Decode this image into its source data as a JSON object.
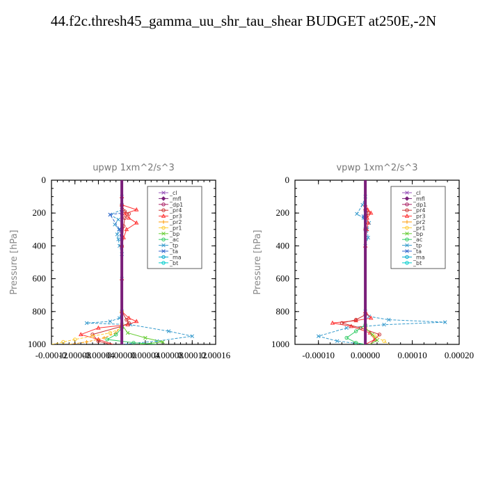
{
  "title": "44.f2c.thresh45_gamma_uu_shr_tau_shear  BUDGET at250E,-2N",
  "legend_entries": [
    {
      "name": "_cl",
      "color": "#9955bb",
      "marker": "star"
    },
    {
      "name": "_mfl",
      "color": "#7a1f7a",
      "marker": "diamond"
    },
    {
      "name": "_dp1",
      "color": "#aa2266",
      "marker": "circle"
    },
    {
      "name": "_pr4",
      "color": "#cc3333",
      "marker": "circle"
    },
    {
      "name": "_pr3",
      "color": "#ff3333",
      "marker": "triangle"
    },
    {
      "name": "_pr2",
      "color": "#ff9900",
      "marker": "plus"
    },
    {
      "name": "_pr1",
      "color": "#ffcc33",
      "marker": "circle"
    },
    {
      "name": "_bp",
      "color": "#66cc33",
      "marker": "x"
    },
    {
      "name": "_ac",
      "color": "#33cc66",
      "marker": "circle"
    },
    {
      "name": "_tp",
      "color": "#3399cc",
      "marker": "x"
    },
    {
      "name": "_ta",
      "color": "#3366cc",
      "marker": "arrow"
    },
    {
      "name": "_ma",
      "color": "#00aacc",
      "marker": "dash"
    },
    {
      "name": "_bt",
      "color": "#00cccc",
      "marker": "circle"
    }
  ],
  "chart_data": [
    {
      "type": "line",
      "title": "upwp   1xm^2/s^3",
      "ylabel": "Pressure [hPa]",
      "xlim": [
        -0.00012,
        0.00016
      ],
      "ylim": [
        1000,
        0
      ],
      "xticks": [
        "-0.00012",
        "-0.00008",
        "-0.00004",
        "0.00000",
        "0.00004",
        "0.00008",
        "0.00012",
        "0.00016"
      ],
      "yticks": [
        "0",
        "200",
        "400",
        "600",
        "800",
        "1000"
      ],
      "legend_position": "top-right",
      "series": [
        {
          "name": "_tp",
          "x": [
            0,
            0,
            0,
            0,
            -2e-05,
            -6e-06,
            -1.2e-05,
            -5e-06,
            -8e-06,
            -6e-06,
            -4e-06,
            0,
            0,
            0,
            -4e-06,
            -2e-05,
            -6e-05,
            1.5e-05,
            8e-05,
            0.00012,
            6e-05,
            0
          ],
          "y": [
            0,
            100,
            150,
            180,
            210,
            240,
            270,
            300,
            330,
            360,
            400,
            450,
            600,
            800,
            840,
            860,
            870,
            880,
            920,
            950,
            980,
            1000
          ]
        },
        {
          "name": "_pr3",
          "x": [
            0,
            0,
            0,
            2.5e-05,
            5e-06,
            1.2e-05,
            2.5e-05,
            8e-06,
            3e-06,
            0,
            0,
            0,
            1.2e-05,
            2.5e-05,
            1e-05,
            -4e-05,
            -7e-05,
            -4e-05,
            -1.5e-05
          ],
          "y": [
            0,
            100,
            150,
            180,
            205,
            230,
            260,
            300,
            350,
            400,
            600,
            800,
            840,
            860,
            880,
            900,
            940,
            970,
            1000
          ]
        },
        {
          "name": "_pr4",
          "x": [
            0,
            0,
            5e-06,
            1.2e-05,
            5e-06,
            3e-06,
            0,
            0,
            8e-06,
            1.2e-05,
            0,
            -5e-05,
            -4e-05,
            -2e-05
          ],
          "y": [
            0,
            150,
            190,
            205,
            230,
            280,
            400,
            800,
            850,
            870,
            890,
            940,
            980,
            1000
          ]
        },
        {
          "name": "_pr1",
          "x": [
            0,
            0,
            0,
            -2e-05,
            -5e-05,
            -8e-05,
            -0.0001,
            -0.00012
          ],
          "y": [
            0,
            800,
            900,
            930,
            950,
            970,
            985,
            1000
          ]
        },
        {
          "name": "_pr2",
          "x": [
            0,
            0,
            -1e-05,
            -3e-05,
            -6e-05,
            -9e-05
          ],
          "y": [
            0,
            880,
            930,
            960,
            985,
            1000
          ]
        },
        {
          "name": "_bp",
          "x": [
            0,
            0,
            1e-05,
            4e-05,
            7e-05,
            3e-05
          ],
          "y": [
            0,
            880,
            930,
            960,
            985,
            1000
          ]
        },
        {
          "name": "_ac",
          "x": [
            0,
            0,
            -1e-05,
            -2.5e-05,
            2e-05,
            6e-05
          ],
          "y": [
            0,
            900,
            940,
            970,
            990,
            1000
          ]
        },
        {
          "name": "_ta",
          "x": [
            0,
            0,
            -2e-05,
            -4e-06,
            0,
            0
          ],
          "y": [
            0,
            200,
            210,
            300,
            450,
            1000
          ]
        },
        {
          "name": "_mfl",
          "x": [
            0,
            0
          ],
          "y": [
            0,
            1000
          ]
        }
      ]
    },
    {
      "type": "line",
      "title": "vpwp   1xm^2/s^3",
      "ylabel": "Pressure [hPa]",
      "xlim": [
        -0.00015,
        0.0002
      ],
      "ylim": [
        1000,
        0
      ],
      "xticks": [
        "-0.00010",
        "0.00000",
        "0.00010",
        "0.00020"
      ],
      "yticks": [
        "0",
        "200",
        "400",
        "600",
        "800",
        "1000"
      ],
      "legend_position": "top-right",
      "series": [
        {
          "name": "_tp",
          "x": [
            0,
            0,
            -6e-06,
            -1.8e-05,
            -4e-06,
            8e-06,
            4e-06,
            6e-06,
            0,
            0,
            8e-06,
            5e-05,
            0.00017,
            4e-05,
            -4e-05,
            -0.0001,
            -6e-05,
            0
          ],
          "y": [
            0,
            100,
            150,
            205,
            230,
            260,
            300,
            350,
            400,
            800,
            830,
            850,
            865,
            880,
            900,
            950,
            980,
            1000
          ]
        },
        {
          "name": "_pr3",
          "x": [
            0,
            0,
            5e-06,
            1.2e-05,
            4e-06,
            6e-06,
            3e-06,
            0,
            0,
            1.2e-05,
            -2e-05,
            -7e-05,
            -3e-05,
            1e-05,
            2e-05,
            0
          ],
          "y": [
            0,
            150,
            180,
            200,
            230,
            260,
            300,
            400,
            800,
            840,
            855,
            870,
            890,
            930,
            970,
            1000
          ]
        },
        {
          "name": "_pr4",
          "x": [
            0,
            0,
            6e-06,
            2e-06,
            0,
            0,
            -2e-05,
            -5e-05,
            -1e-05,
            3e-05,
            1e-05
          ],
          "y": [
            0,
            180,
            200,
            220,
            300,
            820,
            850,
            870,
            900,
            940,
            1000
          ]
        },
        {
          "name": "_pr1",
          "x": [
            0,
            0,
            2e-05,
            4e-05,
            5e-05
          ],
          "y": [
            0,
            900,
            950,
            980,
            1000
          ]
        },
        {
          "name": "_ac",
          "x": [
            0,
            0,
            -2e-05,
            -4e-05,
            -2e-05,
            0
          ],
          "y": [
            0,
            880,
            920,
            960,
            990,
            1000
          ]
        },
        {
          "name": "_bp",
          "x": [
            0,
            0,
            1.5e-05,
            2.5e-05,
            1e-05
          ],
          "y": [
            0,
            900,
            940,
            975,
            1000
          ]
        },
        {
          "name": "_ta",
          "x": [
            0,
            0,
            -4e-06,
            0,
            0
          ],
          "y": [
            0,
            200,
            220,
            300,
            1000
          ]
        },
        {
          "name": "_mfl",
          "x": [
            0,
            0
          ],
          "y": [
            0,
            1000
          ]
        }
      ]
    }
  ]
}
